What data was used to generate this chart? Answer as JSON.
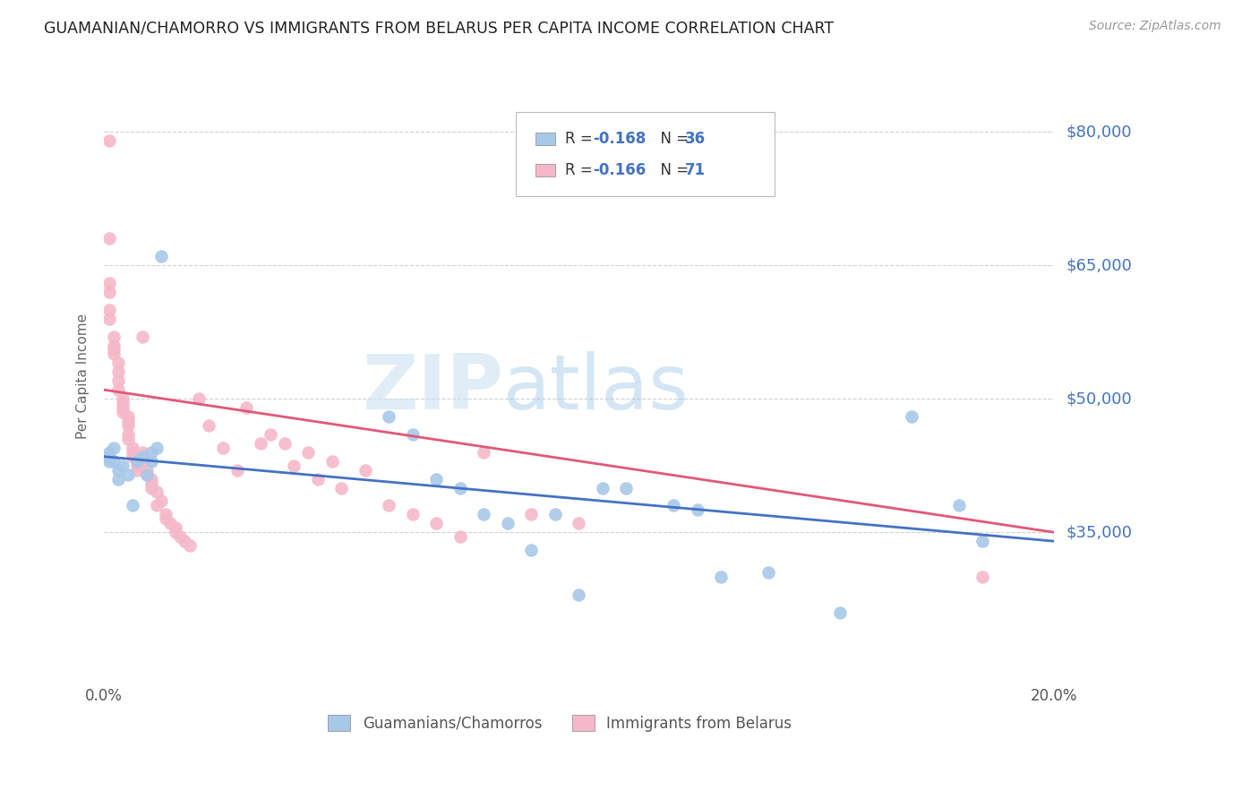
{
  "title": "GUAMANIAN/CHAMORRO VS IMMIGRANTS FROM BELARUS PER CAPITA INCOME CORRELATION CHART",
  "source": "Source: ZipAtlas.com",
  "ylabel": "Per Capita Income",
  "xlim": [
    0.0,
    0.2
  ],
  "ylim": [
    18000,
    87000
  ],
  "ytick_values": [
    35000,
    50000,
    65000,
    80000
  ],
  "ytick_labels": [
    "$35,000",
    "$50,000",
    "$65,000",
    "$80,000"
  ],
  "blue_color": "#a8c8e8",
  "pink_color": "#f5b8c8",
  "blue_line_color": "#4472c4",
  "pink_line_color": "#e05878",
  "label1": "Guamanians/Chamorros",
  "label2": "Immigrants from Belarus",
  "watermark_zip": "ZIP",
  "watermark_atlas": "atlas",
  "blue_scatter_x": [
    0.001,
    0.001,
    0.001,
    0.002,
    0.002,
    0.003,
    0.003,
    0.004,
    0.005,
    0.006,
    0.007,
    0.008,
    0.009,
    0.01,
    0.01,
    0.011,
    0.012,
    0.06,
    0.065,
    0.07,
    0.075,
    0.08,
    0.085,
    0.09,
    0.095,
    0.1,
    0.105,
    0.11,
    0.12,
    0.125,
    0.13,
    0.14,
    0.155,
    0.17,
    0.18,
    0.185
  ],
  "blue_scatter_y": [
    44000,
    43500,
    43000,
    44500,
    43000,
    42000,
    41000,
    42500,
    41500,
    38000,
    43000,
    43500,
    41500,
    43000,
    44000,
    44500,
    66000,
    48000,
    46000,
    41000,
    40000,
    37000,
    36000,
    33000,
    37000,
    28000,
    40000,
    40000,
    38000,
    37500,
    30000,
    30500,
    26000,
    48000,
    38000,
    34000
  ],
  "pink_scatter_x": [
    0.001,
    0.001,
    0.001,
    0.001,
    0.001,
    0.001,
    0.002,
    0.002,
    0.002,
    0.002,
    0.003,
    0.003,
    0.003,
    0.003,
    0.004,
    0.004,
    0.004,
    0.004,
    0.005,
    0.005,
    0.005,
    0.005,
    0.005,
    0.006,
    0.006,
    0.006,
    0.007,
    0.007,
    0.007,
    0.008,
    0.008,
    0.008,
    0.009,
    0.009,
    0.01,
    0.01,
    0.01,
    0.011,
    0.011,
    0.012,
    0.013,
    0.013,
    0.014,
    0.015,
    0.015,
    0.016,
    0.017,
    0.018,
    0.02,
    0.022,
    0.025,
    0.028,
    0.03,
    0.033,
    0.035,
    0.038,
    0.04,
    0.043,
    0.045,
    0.048,
    0.05,
    0.055,
    0.06,
    0.065,
    0.07,
    0.075,
    0.08,
    0.09,
    0.1,
    0.185
  ],
  "pink_scatter_y": [
    79000,
    68000,
    63000,
    62000,
    60000,
    59000,
    57000,
    56000,
    55500,
    55000,
    54000,
    53000,
    52000,
    51000,
    50000,
    49500,
    49000,
    48500,
    48000,
    47500,
    47000,
    46000,
    45500,
    44500,
    44000,
    43500,
    43000,
    42500,
    42000,
    57000,
    44000,
    43000,
    42000,
    41500,
    41000,
    40500,
    40000,
    39500,
    38000,
    38500,
    37000,
    36500,
    36000,
    35500,
    35000,
    34500,
    34000,
    33500,
    50000,
    47000,
    44500,
    42000,
    49000,
    45000,
    46000,
    45000,
    42500,
    44000,
    41000,
    43000,
    40000,
    42000,
    38000,
    37000,
    36000,
    34500,
    44000,
    37000,
    36000,
    30000
  ],
  "blue_trend_x": [
    0.0,
    0.2
  ],
  "blue_trend_y": [
    43500,
    34000
  ],
  "pink_trend_x": [
    0.0,
    0.2
  ],
  "pink_trend_y": [
    51000,
    35000
  ]
}
